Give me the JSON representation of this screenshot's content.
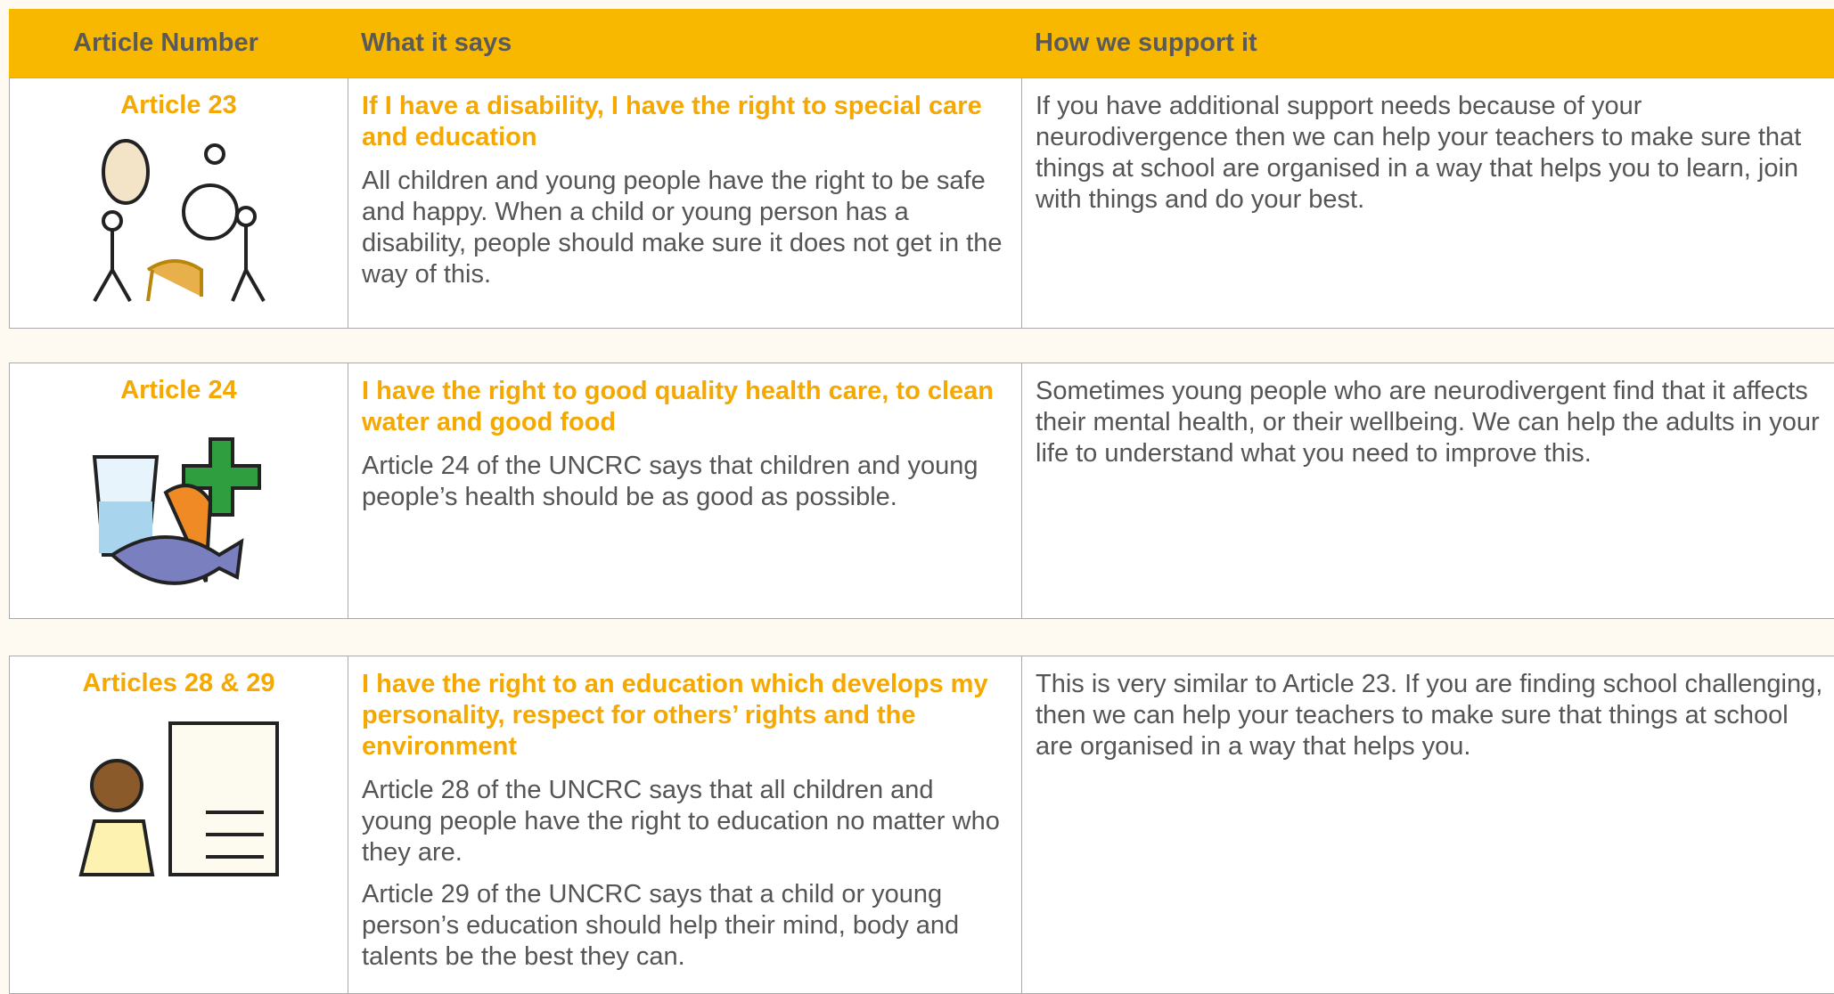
{
  "header": {
    "columns": [
      "Article Number",
      "What it says",
      "How we support it"
    ]
  },
  "rows": [
    {
      "article": "Article 23",
      "heading": "If I have a disability, I have the right to special care and education",
      "paragraphs": [
        "All children and young people have the right to be safe and happy. When a child or young person has a disability, people should make sure it does not get in the way of this."
      ],
      "support": "If you have additional support needs because of your neurodivergence then we can help your teachers to make sure that things at school are organised in a way that helps you to learn, join with things and do your best."
    },
    {
      "article": "Article 24",
      "heading": "I have the right to good quality health care, to clean water and good food",
      "paragraphs": [
        "Article 24 of the UNCRC says that children and young people’s health should be as good as possible."
      ],
      "support": "Sometimes young people who are neurodivergent find that it affects their mental health, or their wellbeing. We can help the adults in your life to understand what you need to improve this."
    },
    {
      "article": "Articles 28 & 29",
      "heading": "I have the right to an education which develops my personality, respect for others’ rights and the environment",
      "paragraphs": [
        "Article 28 of the UNCRC says that all children and young people have the right to education no matter who they are.",
        "Article 29 of the UNCRC says that a child or young person’s education should help their mind, body and talents be the best they can."
      ],
      "support": "This is very similar to Article 23. If you are finding school challenging, then we can help your teachers to make sure that things at school are organised in a way that helps you."
    }
  ]
}
